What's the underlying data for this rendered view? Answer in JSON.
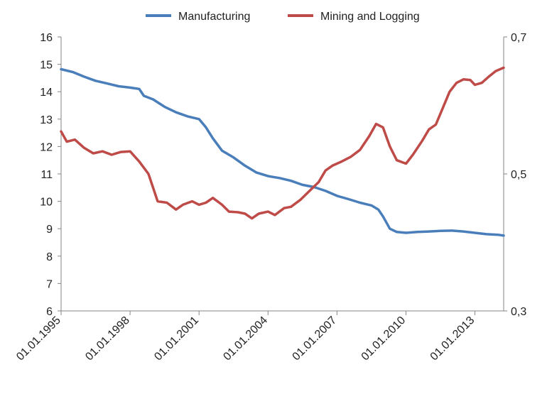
{
  "chart_data": {
    "type": "line",
    "title": "",
    "xlabel": "",
    "ylabel_left": "",
    "ylabel_right": "",
    "x_tick_labels": [
      "01.01.1995",
      "01.01.1998",
      "01.01.2001",
      "01.01.2004",
      "01.01.2007",
      "01.01.2010",
      "01.01.2013"
    ],
    "x_tick_years": [
      1995,
      1998,
      2001,
      2004,
      2007,
      2010,
      2013
    ],
    "xlim": [
      1995,
      2014.25
    ],
    "y_left": {
      "ylim": [
        6,
        16
      ],
      "ticks": [
        6,
        7,
        8,
        9,
        10,
        11,
        12,
        13,
        14,
        15,
        16
      ],
      "tick_labels": [
        "6",
        "7",
        "8",
        "9",
        "10",
        "11",
        "12",
        "13",
        "14",
        "15",
        "16"
      ]
    },
    "y_right": {
      "ylim": [
        0.3,
        0.7
      ],
      "ticks": [
        0.3,
        0.5,
        0.7
      ],
      "tick_labels": [
        "0,3",
        "0,5",
        "0,7"
      ]
    },
    "legend_position": "top-center",
    "grid": false,
    "series": [
      {
        "name": "Manufacturing",
        "axis": "left",
        "color": "#4a7ebb",
        "points": [
          [
            1995.0,
            14.82
          ],
          [
            1995.5,
            14.72
          ],
          [
            1996.0,
            14.55
          ],
          [
            1996.5,
            14.4
          ],
          [
            1997.0,
            14.3
          ],
          [
            1997.5,
            14.2
          ],
          [
            1998.0,
            14.15
          ],
          [
            1998.4,
            14.1
          ],
          [
            1998.6,
            13.85
          ],
          [
            1999.0,
            13.72
          ],
          [
            1999.5,
            13.45
          ],
          [
            2000.0,
            13.25
          ],
          [
            2000.5,
            13.1
          ],
          [
            2001.0,
            13.0
          ],
          [
            2001.3,
            12.7
          ],
          [
            2001.6,
            12.3
          ],
          [
            2002.0,
            11.85
          ],
          [
            2002.5,
            11.6
          ],
          [
            2003.0,
            11.3
          ],
          [
            2003.5,
            11.05
          ],
          [
            2004.0,
            10.92
          ],
          [
            2004.5,
            10.85
          ],
          [
            2005.0,
            10.75
          ],
          [
            2005.5,
            10.6
          ],
          [
            2006.0,
            10.52
          ],
          [
            2006.5,
            10.38
          ],
          [
            2007.0,
            10.2
          ],
          [
            2007.5,
            10.08
          ],
          [
            2008.0,
            9.95
          ],
          [
            2008.5,
            9.85
          ],
          [
            2008.8,
            9.7
          ],
          [
            2009.0,
            9.45
          ],
          [
            2009.3,
            9.0
          ],
          [
            2009.6,
            8.88
          ],
          [
            2010.0,
            8.85
          ],
          [
            2010.5,
            8.88
          ],
          [
            2011.0,
            8.9
          ],
          [
            2011.5,
            8.92
          ],
          [
            2012.0,
            8.93
          ],
          [
            2012.5,
            8.9
          ],
          [
            2013.0,
            8.85
          ],
          [
            2013.5,
            8.8
          ],
          [
            2014.0,
            8.78
          ],
          [
            2014.25,
            8.75
          ]
        ]
      },
      {
        "name": "Mining and Logging",
        "axis": "right",
        "color": "#be4b48",
        "points": [
          [
            1995.0,
            0.562
          ],
          [
            1995.25,
            0.547
          ],
          [
            1995.6,
            0.55
          ],
          [
            1996.0,
            0.538
          ],
          [
            1996.4,
            0.53
          ],
          [
            1996.8,
            0.533
          ],
          [
            1997.2,
            0.528
          ],
          [
            1997.6,
            0.532
          ],
          [
            1998.0,
            0.533
          ],
          [
            1998.4,
            0.518
          ],
          [
            1998.8,
            0.5
          ],
          [
            1999.2,
            0.46
          ],
          [
            1999.6,
            0.458
          ],
          [
            2000.0,
            0.448
          ],
          [
            2000.3,
            0.455
          ],
          [
            2000.7,
            0.46
          ],
          [
            2001.0,
            0.455
          ],
          [
            2001.3,
            0.458
          ],
          [
            2001.6,
            0.465
          ],
          [
            2002.0,
            0.455
          ],
          [
            2002.3,
            0.445
          ],
          [
            2002.7,
            0.444
          ],
          [
            2003.0,
            0.442
          ],
          [
            2003.3,
            0.435
          ],
          [
            2003.6,
            0.442
          ],
          [
            2004.0,
            0.445
          ],
          [
            2004.3,
            0.44
          ],
          [
            2004.7,
            0.45
          ],
          [
            2005.0,
            0.452
          ],
          [
            2005.4,
            0.462
          ],
          [
            2005.8,
            0.475
          ],
          [
            2006.2,
            0.488
          ],
          [
            2006.5,
            0.505
          ],
          [
            2006.8,
            0.512
          ],
          [
            2007.2,
            0.518
          ],
          [
            2007.6,
            0.525
          ],
          [
            2008.0,
            0.535
          ],
          [
            2008.4,
            0.555
          ],
          [
            2008.7,
            0.573
          ],
          [
            2009.0,
            0.568
          ],
          [
            2009.3,
            0.54
          ],
          [
            2009.6,
            0.52
          ],
          [
            2010.0,
            0.515
          ],
          [
            2010.3,
            0.528
          ],
          [
            2010.7,
            0.548
          ],
          [
            2011.0,
            0.565
          ],
          [
            2011.3,
            0.572
          ],
          [
            2011.6,
            0.596
          ],
          [
            2011.9,
            0.62
          ],
          [
            2012.2,
            0.633
          ],
          [
            2012.5,
            0.638
          ],
          [
            2012.8,
            0.637
          ],
          [
            2013.0,
            0.63
          ],
          [
            2013.3,
            0.633
          ],
          [
            2013.6,
            0.642
          ],
          [
            2013.9,
            0.65
          ],
          [
            2014.25,
            0.655
          ]
        ]
      }
    ]
  }
}
